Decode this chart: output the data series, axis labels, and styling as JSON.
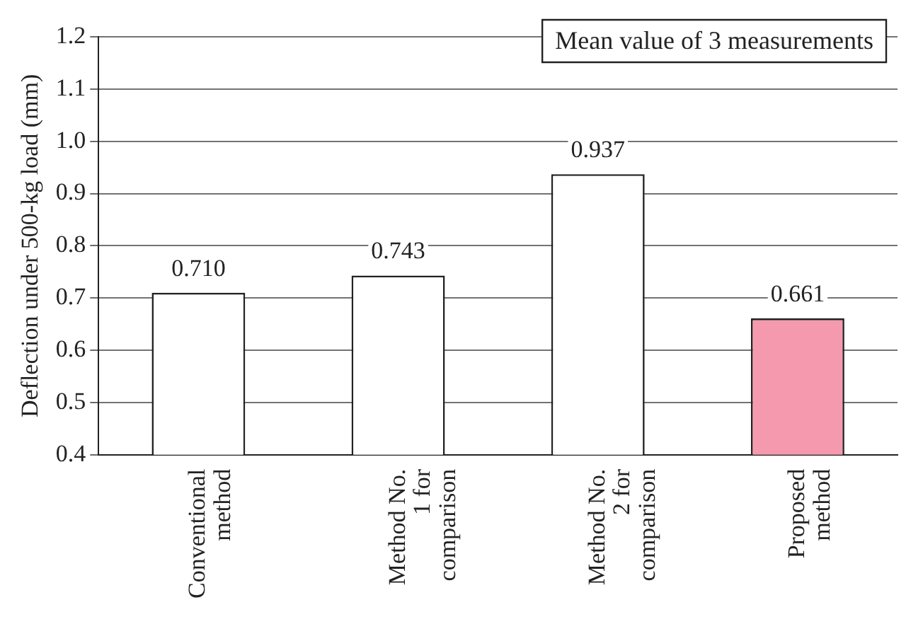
{
  "chart_data": {
    "type": "bar",
    "ylabel": "Deflection under 500-kg load (mm)",
    "categories": [
      "Conventional method",
      "Method No. 1 for comparison",
      "Method No. 2 for comparison",
      "Proposed method"
    ],
    "values": [
      0.71,
      0.743,
      0.937,
      0.661
    ],
    "colors": [
      "#ffffff",
      "#ffffff",
      "#ffffff",
      "#f59aae"
    ],
    "ylim": [
      0.4,
      1.2
    ],
    "yticks": [
      0.4,
      0.5,
      0.6,
      0.7,
      0.8,
      0.9,
      {
        "value": 1,
        "label": "1.0"
      },
      1.1,
      1.2
    ],
    "grid": "y",
    "value_labels": [
      "0.710",
      "0.743",
      "0.937",
      "0.661"
    ],
    "annotations": [
      "Mean value of 3 measurements"
    ]
  }
}
